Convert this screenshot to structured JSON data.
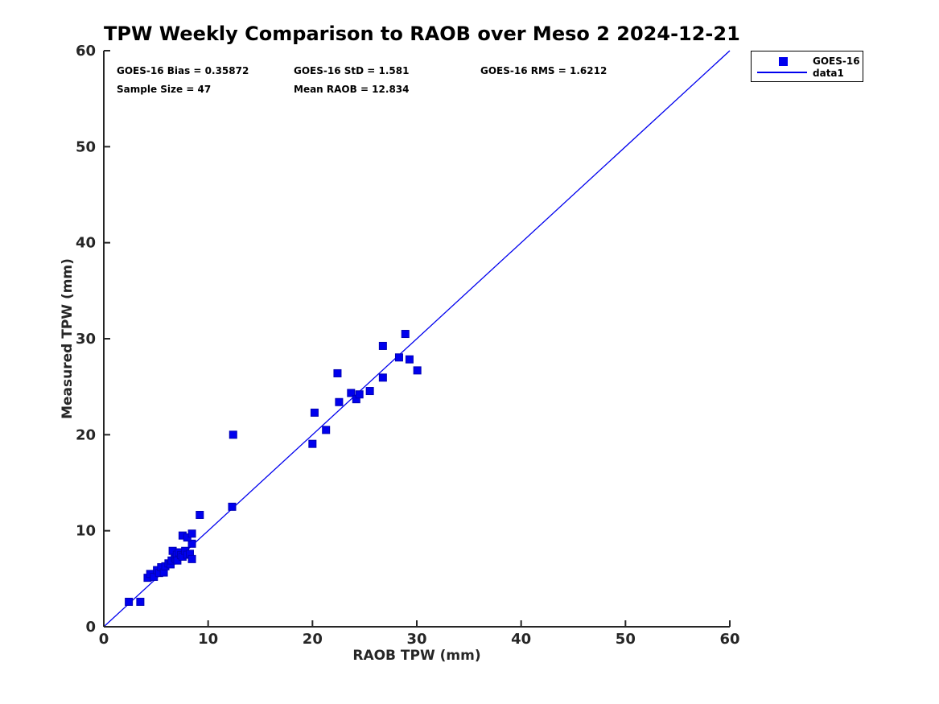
{
  "title": "TPW Weekly Comparison to RAOB over Meso 2 2024-12-21",
  "stats": {
    "bias": "GOES-16 Bias = 0.35872",
    "std": "GOES-16 StD = 1.581",
    "rms": "GOES-16 RMS = 1.6212",
    "sample_size": "Sample Size = 47",
    "mean_raob": "Mean RAOB = 12.834"
  },
  "legend": {
    "position": "outside-top-right",
    "entries": [
      {
        "label": "GOES-16",
        "swatch": "square-marker"
      },
      {
        "label": "data1",
        "swatch": "line"
      }
    ]
  },
  "colors": {
    "series_blue": "#0000EE",
    "marker_edge": "#0000B4",
    "axis": "#262626",
    "text": "#000000",
    "background": "#FFFFFF"
  },
  "chart_data": {
    "type": "scatter",
    "title": "TPW Weekly Comparison to RAOB over Meso 2 2024-12-21",
    "xlabel": "RAOB TPW (mm)",
    "ylabel": "Measured TPW (mm)",
    "xlim": [
      0,
      60
    ],
    "ylim": [
      0,
      60
    ],
    "xticks": [
      0,
      10,
      20,
      30,
      40,
      50,
      60
    ],
    "yticks": [
      0,
      10,
      20,
      30,
      40,
      50,
      60
    ],
    "grid": false,
    "legend_position": "outside-top-right",
    "annotations": [
      "GOES-16 Bias = 0.35872",
      "GOES-16 StD = 1.581",
      "GOES-16 RMS = 1.6212",
      "Sample Size = 47",
      "Mean RAOB = 12.834"
    ],
    "series": [
      {
        "name": "GOES-16",
        "type": "scatter",
        "marker": "filled-square",
        "color": "#0000EE",
        "points": [
          [
            2.4,
            2.6
          ],
          [
            3.5,
            2.6
          ],
          [
            4.2,
            5.1
          ],
          [
            4.45,
            5.5
          ],
          [
            4.8,
            5.2
          ],
          [
            5.1,
            5.9
          ],
          [
            5.3,
            5.6
          ],
          [
            5.5,
            6.2
          ],
          [
            5.75,
            5.65
          ],
          [
            5.9,
            6.3
          ],
          [
            6.2,
            6.6
          ],
          [
            6.4,
            6.5
          ],
          [
            6.5,
            6.9
          ],
          [
            6.6,
            7.9
          ],
          [
            6.8,
            7.2
          ],
          [
            6.9,
            7.05
          ],
          [
            7.0,
            7.5
          ],
          [
            7.05,
            6.9
          ],
          [
            7.2,
            7.75
          ],
          [
            7.4,
            7.45
          ],
          [
            7.55,
            7.3
          ],
          [
            7.8,
            7.9
          ],
          [
            8.0,
            7.5
          ],
          [
            8.25,
            7.6
          ],
          [
            8.45,
            7.05
          ],
          [
            8.45,
            8.65
          ],
          [
            7.55,
            9.5
          ],
          [
            8.0,
            9.3
          ],
          [
            8.45,
            9.7
          ],
          [
            9.2,
            11.65
          ],
          [
            12.3,
            12.5
          ],
          [
            12.4,
            20.0
          ],
          [
            20.0,
            19.05
          ],
          [
            20.2,
            22.3
          ],
          [
            21.3,
            20.5
          ],
          [
            22.4,
            26.4
          ],
          [
            22.55,
            23.4
          ],
          [
            23.7,
            24.35
          ],
          [
            24.2,
            23.7
          ],
          [
            24.5,
            24.2
          ],
          [
            25.5,
            24.55
          ],
          [
            26.75,
            25.95
          ],
          [
            26.75,
            29.25
          ],
          [
            28.3,
            28.05
          ],
          [
            28.9,
            30.5
          ],
          [
            29.3,
            27.85
          ],
          [
            30.05,
            26.7
          ]
        ]
      },
      {
        "name": "data1",
        "type": "line",
        "color": "#0000EE",
        "points": [
          [
            0,
            0
          ],
          [
            60,
            60
          ]
        ]
      }
    ]
  }
}
